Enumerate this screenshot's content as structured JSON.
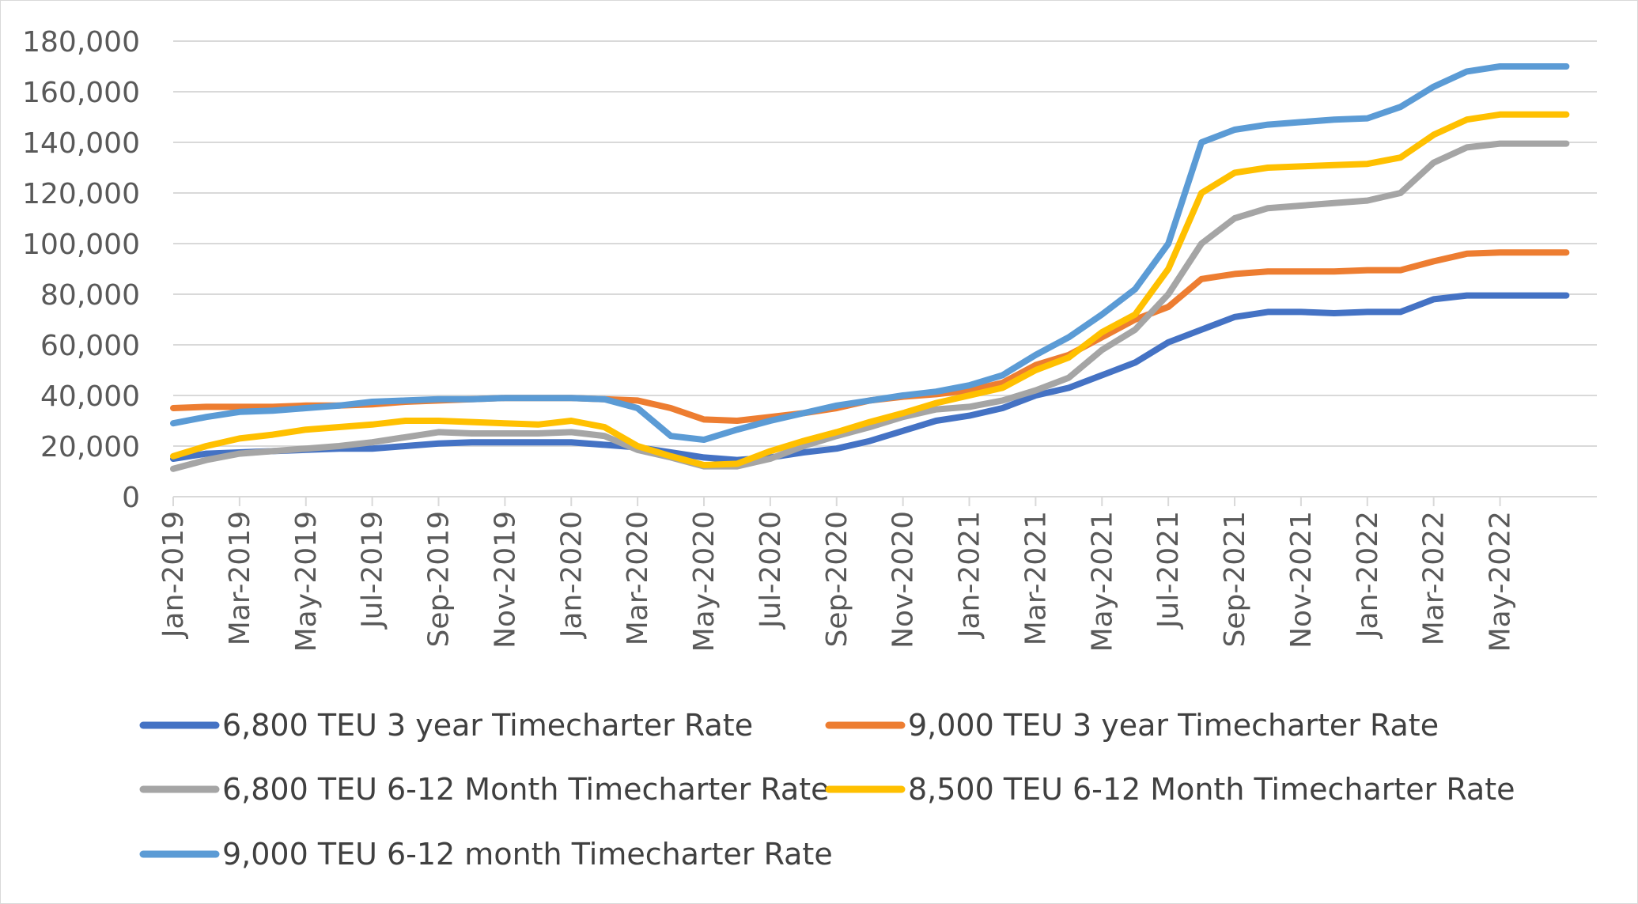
{
  "chart_data": {
    "type": "line",
    "title": "",
    "xlabel": "",
    "ylabel": "",
    "ylim": [
      0,
      180000
    ],
    "yticks": [
      "0",
      "20,000",
      "40,000",
      "60,000",
      "80,000",
      "100,000",
      "120,000",
      "140,000",
      "160,000",
      "180,000"
    ],
    "xticks": [
      "Jan-2019",
      "Mar-2019",
      "May-2019",
      "Jul-2019",
      "Sep-2019",
      "Nov-2019",
      "Jan-2020",
      "Mar-2020",
      "May-2020",
      "Jul-2020",
      "Sep-2020",
      "Nov-2020",
      "Jan-2021",
      "Mar-2021",
      "May-2021",
      "Jul-2021",
      "Sep-2021",
      "Nov-2021",
      "Jan-2022",
      "Mar-2022",
      "May-2022"
    ],
    "grid": true,
    "legend_position": "bottom",
    "x": [
      "2019-01",
      "2019-02",
      "2019-03",
      "2019-04",
      "2019-05",
      "2019-06",
      "2019-07",
      "2019-08",
      "2019-09",
      "2019-10",
      "2019-11",
      "2019-12",
      "2020-01",
      "2020-02",
      "2020-03",
      "2020-04",
      "2020-05",
      "2020-06",
      "2020-07",
      "2020-08",
      "2020-09",
      "2020-10",
      "2020-11",
      "2020-12",
      "2021-01",
      "2021-02",
      "2021-03",
      "2021-04",
      "2021-05",
      "2021-06",
      "2021-07",
      "2021-08",
      "2021-09",
      "2021-10",
      "2021-11",
      "2021-12",
      "2022-01",
      "2022-02",
      "2022-03",
      "2022-04",
      "2022-05",
      "2022-06",
      "2022-07"
    ],
    "series": [
      {
        "name": "6,800 TEU 3 year Timecharter Rate",
        "color": "#4472c4",
        "values": [
          15000,
          17000,
          17500,
          18000,
          18500,
          19000,
          19000,
          20000,
          21000,
          21500,
          21500,
          21500,
          21500,
          20500,
          19500,
          17500,
          15500,
          14500,
          15500,
          17500,
          19000,
          22000,
          26000,
          30000,
          32000,
          35000,
          40000,
          43000,
          48000,
          53000,
          61000,
          66000,
          71000,
          73000,
          73000,
          72500,
          73000,
          73000,
          78000,
          79500,
          79500,
          79500,
          79500
        ]
      },
      {
        "name": "9,000 TEU 3 year Timecharter Rate",
        "color": "#ed7d31",
        "values": [
          35000,
          35500,
          35500,
          35500,
          36000,
          36000,
          36500,
          37500,
          38000,
          38500,
          39000,
          39000,
          39000,
          38500,
          38000,
          35000,
          30500,
          30000,
          31500,
          33000,
          35000,
          38000,
          39500,
          40500,
          42000,
          45000,
          52000,
          56000,
          63000,
          70000,
          75000,
          86000,
          88000,
          89000,
          89000,
          89000,
          89500,
          89500,
          93000,
          96000,
          96500,
          96500,
          96500
        ]
      },
      {
        "name": "6,800 TEU 6-12 Month Timecharter Rate",
        "color": "#a5a5a5",
        "values": [
          11000,
          14500,
          17000,
          18000,
          19000,
          20000,
          21500,
          23500,
          25500,
          25000,
          25000,
          25000,
          25500,
          24000,
          18500,
          15500,
          12000,
          12000,
          15000,
          20000,
          24000,
          27500,
          31500,
          34500,
          35500,
          38000,
          42000,
          47000,
          58000,
          66000,
          80000,
          100000,
          110000,
          114000,
          115000,
          116000,
          117000,
          120000,
          132000,
          138000,
          139500,
          139500,
          139500
        ]
      },
      {
        "name": "8,500 TEU 6-12 Month Timecharter Rate",
        "color": "#ffc000",
        "values": [
          16000,
          20000,
          23000,
          24500,
          26500,
          27500,
          28500,
          30000,
          30000,
          29500,
          29000,
          28500,
          30000,
          27500,
          20000,
          16000,
          12500,
          13000,
          18000,
          22000,
          25500,
          29500,
          33000,
          37000,
          40000,
          43000,
          50000,
          55000,
          65000,
          72000,
          90000,
          120000,
          128000,
          130000,
          130500,
          131000,
          131500,
          134000,
          143000,
          149000,
          151000,
          151000,
          151000
        ]
      },
      {
        "name": "9,000 TEU 6-12 month Timecharter Rate",
        "color": "#5b9bd5",
        "values": [
          29000,
          31500,
          33500,
          34000,
          35000,
          36000,
          37500,
          38000,
          38500,
          38500,
          39000,
          39000,
          39000,
          38500,
          35000,
          24000,
          22500,
          26500,
          30000,
          33000,
          36000,
          38000,
          40000,
          41500,
          44000,
          48000,
          56000,
          63000,
          72000,
          82000,
          100000,
          140000,
          145000,
          147000,
          148000,
          149000,
          149500,
          154000,
          162000,
          168000,
          170000,
          170000,
          170000
        ]
      }
    ]
  }
}
